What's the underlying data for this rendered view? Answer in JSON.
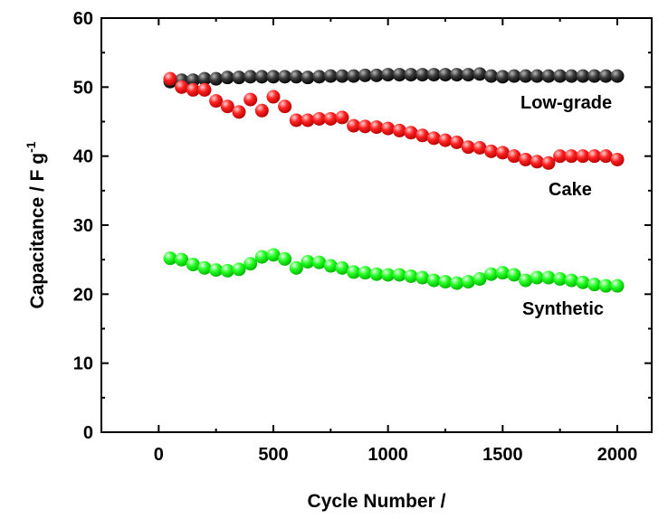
{
  "chart_data": {
    "type": "scatter",
    "xlabel": "Cycle Number /",
    "ylabel": "Capacitance / F g",
    "ylabel_sup": "-1",
    "xlim": [
      -250,
      2150
    ],
    "ylim": [
      0,
      60
    ],
    "xticks": [
      0,
      500,
      1000,
      1500,
      2000
    ],
    "yticks": [
      0,
      10,
      20,
      30,
      40,
      50,
      60
    ],
    "grid": false,
    "series": [
      {
        "name": "Low-grade",
        "color": "#000000",
        "x": [
          50,
          100,
          150,
          200,
          250,
          300,
          350,
          400,
          450,
          500,
          550,
          600,
          650,
          700,
          750,
          800,
          850,
          900,
          950,
          1000,
          1050,
          1100,
          1150,
          1200,
          1250,
          1300,
          1350,
          1400,
          1450,
          1500,
          1550,
          1600,
          1650,
          1700,
          1750,
          1800,
          1850,
          1900,
          1950,
          2000
        ],
        "y": [
          50.8,
          51.0,
          51.0,
          51.2,
          51.2,
          51.4,
          51.4,
          51.5,
          51.5,
          51.5,
          51.5,
          51.5,
          51.4,
          51.5,
          51.6,
          51.6,
          51.6,
          51.7,
          51.7,
          51.8,
          51.8,
          51.8,
          51.8,
          51.8,
          51.8,
          51.8,
          51.8,
          51.9,
          51.6,
          51.5,
          51.6,
          51.6,
          51.6,
          51.6,
          51.6,
          51.6,
          51.6,
          51.6,
          51.6,
          51.6
        ]
      },
      {
        "name": "Cake",
        "color": "#ff0000",
        "x": [
          50,
          100,
          150,
          200,
          250,
          300,
          350,
          400,
          450,
          500,
          550,
          600,
          650,
          700,
          750,
          800,
          850,
          900,
          950,
          1000,
          1050,
          1100,
          1150,
          1200,
          1250,
          1300,
          1350,
          1400,
          1450,
          1500,
          1550,
          1600,
          1650,
          1700,
          1750,
          1800,
          1850,
          1900,
          1950,
          2000
        ],
        "y": [
          51.2,
          50.0,
          49.6,
          49.6,
          48.0,
          47.2,
          46.4,
          48.2,
          46.6,
          48.6,
          47.2,
          45.2,
          45.2,
          45.4,
          45.4,
          45.6,
          44.4,
          44.3,
          44.2,
          44.0,
          43.7,
          43.4,
          43.0,
          42.6,
          42.3,
          42.0,
          41.3,
          41.2,
          40.7,
          40.5,
          40.0,
          39.5,
          39.2,
          39.0,
          40.0,
          40.0,
          40.0,
          40.0,
          40.0,
          39.5
        ]
      },
      {
        "name": "Synthetic",
        "color": "#00ff00",
        "x": [
          50,
          100,
          150,
          200,
          250,
          300,
          350,
          400,
          450,
          500,
          550,
          600,
          650,
          700,
          750,
          800,
          850,
          900,
          950,
          1000,
          1050,
          1100,
          1150,
          1200,
          1250,
          1300,
          1350,
          1400,
          1450,
          1500,
          1550,
          1600,
          1650,
          1700,
          1750,
          1800,
          1850,
          1900,
          1950,
          2000
        ],
        "y": [
          25.2,
          25.0,
          24.3,
          23.8,
          23.5,
          23.4,
          23.6,
          24.4,
          25.4,
          25.7,
          25.1,
          23.8,
          24.7,
          24.6,
          24.1,
          23.8,
          23.2,
          23.1,
          22.9,
          22.8,
          22.8,
          22.6,
          22.4,
          22.0,
          21.8,
          21.6,
          21.8,
          22.2,
          22.9,
          23.1,
          22.8,
          22.0,
          22.4,
          22.4,
          22.2,
          22.0,
          21.7,
          21.4,
          21.2,
          21.2
        ]
      }
    ]
  }
}
